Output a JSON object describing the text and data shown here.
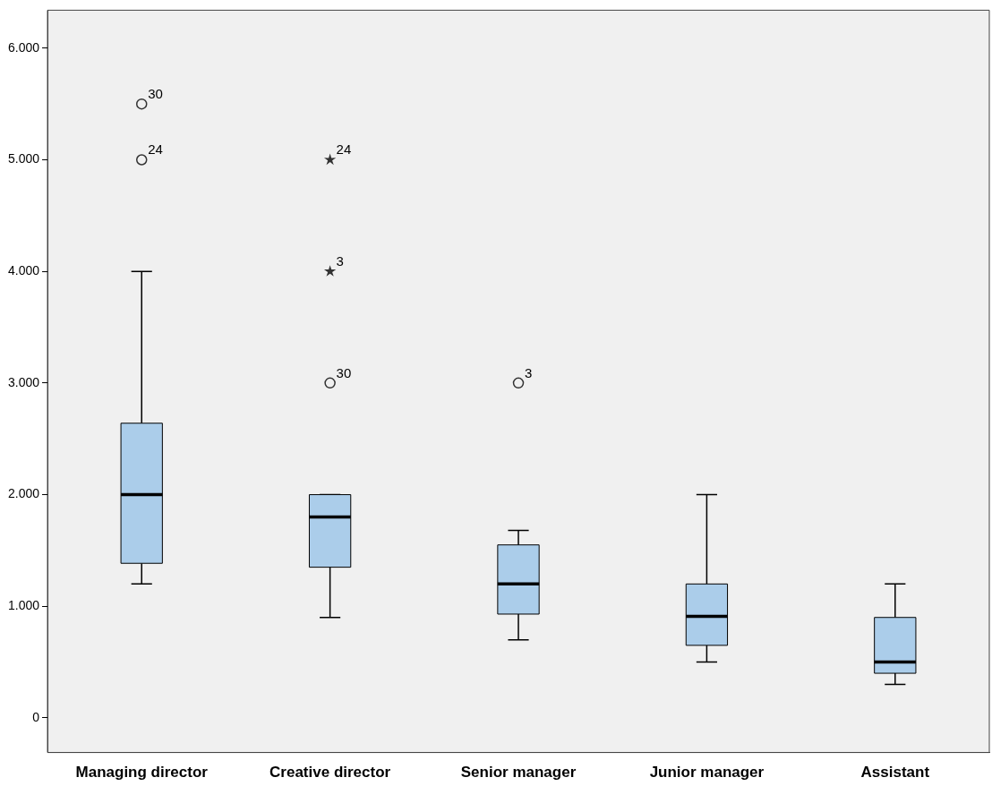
{
  "chart_data": {
    "type": "box",
    "categories": [
      "Managing director",
      "Creative director",
      "Senior manager",
      "Junior manager",
      "Assistant"
    ],
    "color": "#abcdea",
    "boxes": [
      {
        "low": 1200,
        "q1": 1385,
        "median": 2000,
        "q3": 2640,
        "high": 4000
      },
      {
        "low": 900,
        "q1": 1350,
        "median": 1800,
        "q3": 2000,
        "high": 2000
      },
      {
        "low": 700,
        "q1": 930,
        "median": 1200,
        "q3": 1550,
        "high": 1680
      },
      {
        "low": 500,
        "q1": 650,
        "median": 910,
        "q3": 1200,
        "high": 2000
      },
      {
        "low": 300,
        "q1": 400,
        "median": 500,
        "q3": 900,
        "high": 1200
      }
    ],
    "series": [
      {
        "type": "scatter",
        "marker": "circle",
        "color": "#333333",
        "x": [
          "Managing director",
          "Managing director",
          "Creative director",
          "Senior manager"
        ],
        "values": [
          5000,
          5500,
          3000,
          3000
        ]
      },
      {
        "type": "scatter",
        "marker": "star",
        "color": "#333333",
        "x": [
          "Creative director",
          "Creative director"
        ],
        "values": [
          4000,
          5000
        ]
      }
    ],
    "ylim": [
      -310,
      6340
    ],
    "yticks": [
      {
        "value": 0,
        "label": "0"
      },
      {
        "value": 1000,
        "label": "1.000"
      },
      {
        "value": 2000,
        "label": "2.000"
      },
      {
        "value": 3000,
        "label": "3.000"
      },
      {
        "value": 4000,
        "label": "4.000"
      },
      {
        "value": 5000,
        "label": "5.000"
      },
      {
        "value": 6000,
        "label": "6.000"
      }
    ],
    "annotations": [
      {
        "text": "30",
        "x": "Managing director",
        "y": 5500
      },
      {
        "text": "24",
        "x": "Managing director",
        "y": 5000
      },
      {
        "text": "24",
        "x": "Creative director",
        "y": 5000
      },
      {
        "text": "3",
        "x": "Creative director",
        "y": 4000
      },
      {
        "text": "30",
        "x": "Creative director",
        "y": 3000
      },
      {
        "text": "3",
        "x": "Senior manager",
        "y": 3000
      }
    ],
    "grid": false,
    "legend": false
  }
}
